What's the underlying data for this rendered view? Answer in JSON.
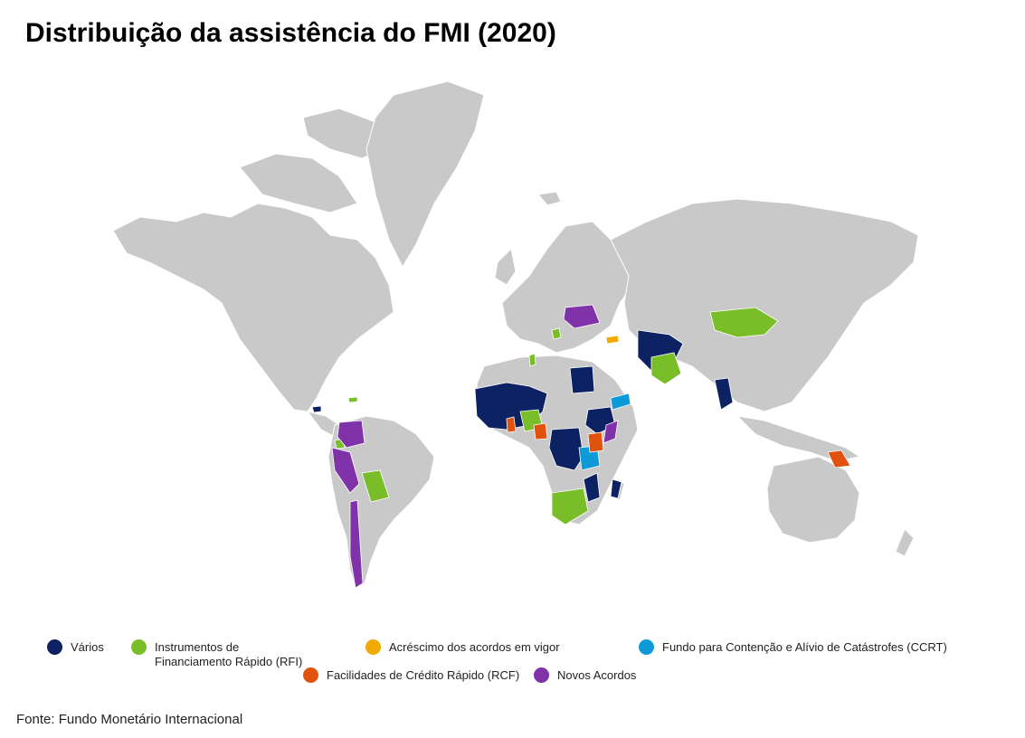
{
  "title": "Distribuição da assistência do FMI (2020)",
  "colors": {
    "land": "#c9c9c9",
    "varios": "#0d2263",
    "rfi": "#79bd28",
    "acrescimo": "#f2a900",
    "ccrt": "#0c9ad9",
    "rcf": "#e2520f",
    "novos": "#8033a8"
  },
  "legend": [
    {
      "key": "varios",
      "label": "Vários",
      "color": "#0d2263"
    },
    {
      "key": "rfi",
      "label": "Instrumentos de Financiamento Rápido (RFI)",
      "color": "#79bd28"
    },
    {
      "key": "acrescimo",
      "label": "Acréscimo dos acordos em vigor",
      "color": "#f2a900"
    },
    {
      "key": "ccrt",
      "label": "Fundo para Contenção e Alívio de Catástrofes (CCRT)",
      "color": "#0c9ad9"
    },
    {
      "key": "rcf",
      "label": "Facilidades de Crédito Rápido (RCF)",
      "color": "#e2520f"
    },
    {
      "key": "novos",
      "label": "Novos Acordos",
      "color": "#8033a8"
    }
  ],
  "source": "Fonte: Fundo Monetário Internacional"
}
